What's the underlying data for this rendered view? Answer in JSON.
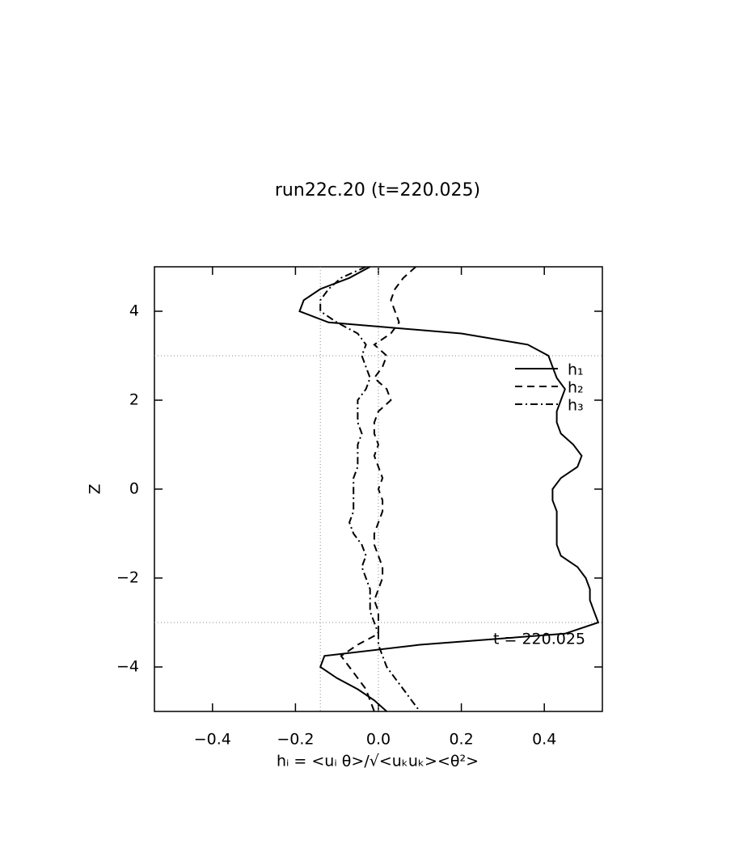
{
  "chart_data": {
    "type": "line",
    "title": "run22c.20 (t=220.025)",
    "x_label": "hᵢ = <uᵢ θ>/√<uₖuₖ><θ²>",
    "y_label": "Z",
    "annotation": "t = 220.025",
    "xlim": [
      -0.54,
      0.54
    ],
    "ylim": [
      -5,
      5
    ],
    "xticks": [
      {
        "value": -0.4,
        "label": "−0.4"
      },
      {
        "value": -0.2,
        "label": "−0.2"
      },
      {
        "value": 0,
        "label": "0.0"
      },
      0.2,
      0.4
    ],
    "yticks": [
      {
        "value": -4,
        "label": "−4"
      },
      {
        "value": -2,
        "label": "−2"
      },
      0,
      2,
      4
    ],
    "vlines": [
      -0.14,
      0
    ],
    "hlines": [
      3,
      -3
    ],
    "y": [
      5,
      4.75,
      4.5,
      4.25,
      4,
      3.75,
      3.5,
      3.25,
      3,
      2.75,
      2.5,
      2.25,
      2,
      1.75,
      1.5,
      1.25,
      1,
      0.75,
      0.5,
      0.25,
      0,
      -0.25,
      -0.5,
      -0.75,
      -1,
      -1.25,
      -1.5,
      -1.75,
      -2,
      -2.25,
      -2.5,
      -2.75,
      -3,
      -3.25,
      -3.5,
      -3.75,
      -4,
      -4.25,
      -4.5,
      -4.75,
      -5
    ],
    "series": [
      {
        "name": "h₁",
        "color": "#000000",
        "dash": "solid",
        "values": [
          -0.02,
          -0.07,
          -0.14,
          -0.18,
          -0.19,
          -0.12,
          0.2,
          0.36,
          0.41,
          0.42,
          0.43,
          0.45,
          0.44,
          0.43,
          0.43,
          0.44,
          0.47,
          0.49,
          0.48,
          0.44,
          0.42,
          0.42,
          0.43,
          0.43,
          0.43,
          0.43,
          0.44,
          0.48,
          0.5,
          0.51,
          0.51,
          0.52,
          0.53,
          0.45,
          0.1,
          -0.13,
          -0.14,
          -0.1,
          -0.05,
          -0.01,
          0.02
        ]
      },
      {
        "name": "h₂",
        "color": "#000000",
        "dash": "dashed",
        "values": [
          0.09,
          0.06,
          0.04,
          0.03,
          0.04,
          0.05,
          0.03,
          -0.01,
          0.02,
          0.01,
          -0.01,
          0.02,
          0.03,
          0.0,
          -0.01,
          -0.01,
          0.0,
          -0.01,
          0.0,
          0.01,
          0.0,
          0.01,
          0.01,
          0.0,
          -0.01,
          -0.01,
          0.0,
          0.01,
          0.01,
          0.0,
          -0.01,
          0.0,
          0.0,
          0.0,
          -0.05,
          -0.09,
          -0.07,
          -0.05,
          -0.03,
          -0.02,
          -0.01
        ]
      },
      {
        "name": "h₃",
        "color": "#000000",
        "dash": "dashdot",
        "values": [
          -0.03,
          -0.09,
          -0.12,
          -0.14,
          -0.14,
          -0.1,
          -0.05,
          -0.03,
          -0.04,
          -0.03,
          -0.02,
          -0.03,
          -0.05,
          -0.05,
          -0.05,
          -0.04,
          -0.05,
          -0.05,
          -0.05,
          -0.06,
          -0.06,
          -0.06,
          -0.06,
          -0.07,
          -0.06,
          -0.04,
          -0.03,
          -0.04,
          -0.03,
          -0.02,
          -0.02,
          -0.02,
          -0.01,
          0.0,
          0.0,
          0.01,
          0.02,
          0.04,
          0.06,
          0.08,
          0.1
        ]
      }
    ]
  }
}
